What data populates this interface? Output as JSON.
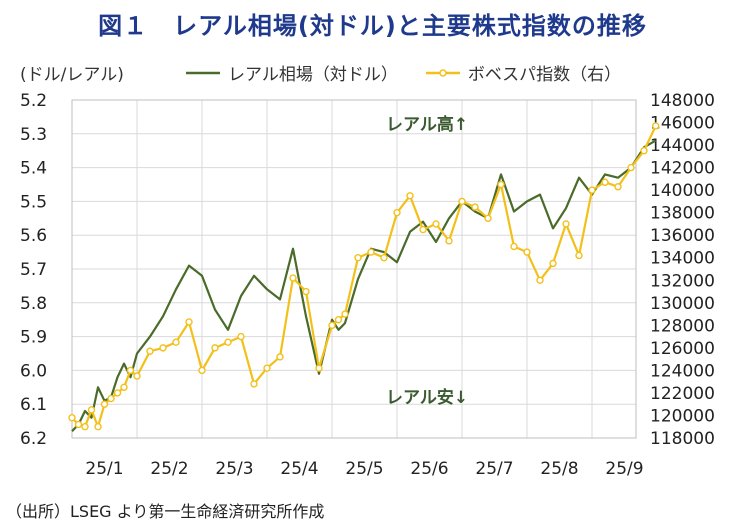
{
  "page": {
    "title": "図１　レアル相場(対ドル)と主要株式指数の推移",
    "source": "（出所）LSEG より第一生命経済研究所作成",
    "left_unit": "(ドル/レアル)"
  },
  "chart_data": {
    "type": "line",
    "title": "図１　レアル相場(対ドル)と主要株式指数の推移",
    "xlabel": "",
    "ylabel_left": "(ドル/レアル)",
    "ylabel_right": "",
    "categories": [
      "25/1",
      "25/2",
      "25/3",
      "25/4",
      "25/5",
      "25/6",
      "25/7",
      "25/8",
      "25/9"
    ],
    "y_left_range": [
      5.2,
      6.2
    ],
    "y_left_inverted": true,
    "y_left_ticks": [
      "5.2",
      "5.3",
      "5.4",
      "5.5",
      "5.6",
      "5.7",
      "5.8",
      "5.9",
      "6.0",
      "6.1",
      "6.2"
    ],
    "y_right_range": [
      118000,
      148000
    ],
    "y_right_ticks": [
      "148000",
      "146000",
      "144000",
      "142000",
      "140000",
      "138000",
      "136000",
      "134000",
      "132000",
      "130000",
      "128000",
      "126000",
      "124000",
      "122000",
      "120000",
      "118000"
    ],
    "annotations": {
      "top": "レアル高↑",
      "bottom": "レアル安↓"
    },
    "series": [
      {
        "name": "レアル相場（対ドル）",
        "axis": "left",
        "color": "#4a6b2a",
        "x": [
          0,
          0.1,
          0.2,
          0.3,
          0.4,
          0.5,
          0.6,
          0.7,
          0.8,
          0.9,
          1,
          1.2,
          1.4,
          1.6,
          1.8,
          2,
          2.2,
          2.4,
          2.6,
          2.8,
          3,
          3.2,
          3.4,
          3.6,
          3.8,
          4,
          4.1,
          4.2,
          4.4,
          4.6,
          4.8,
          5,
          5.2,
          5.4,
          5.6,
          5.8,
          6,
          6.2,
          6.4,
          6.6,
          6.8,
          7,
          7.2,
          7.4,
          7.6,
          7.8,
          8,
          8.2,
          8.4,
          8.6,
          8.8,
          8.98
        ],
        "values": [
          6.18,
          6.16,
          6.12,
          6.14,
          6.05,
          6.09,
          6.08,
          6.02,
          5.98,
          6.02,
          5.95,
          5.9,
          5.84,
          5.76,
          5.69,
          5.72,
          5.82,
          5.88,
          5.78,
          5.72,
          5.76,
          5.79,
          5.64,
          5.84,
          6.01,
          5.85,
          5.88,
          5.86,
          5.73,
          5.64,
          5.65,
          5.68,
          5.59,
          5.56,
          5.62,
          5.55,
          5.5,
          5.53,
          5.55,
          5.42,
          5.53,
          5.5,
          5.48,
          5.58,
          5.52,
          5.43,
          5.48,
          5.42,
          5.43,
          5.4,
          5.34,
          5.32
        ]
      },
      {
        "name": "ボベスパ指数（右）",
        "axis": "right",
        "color": "#f3c01a",
        "x": [
          0,
          0.1,
          0.2,
          0.3,
          0.4,
          0.5,
          0.6,
          0.7,
          0.8,
          0.9,
          1,
          1.2,
          1.4,
          1.6,
          1.8,
          2,
          2.2,
          2.4,
          2.6,
          2.8,
          3,
          3.2,
          3.4,
          3.6,
          3.8,
          4,
          4.1,
          4.2,
          4.4,
          4.6,
          4.8,
          5,
          5.2,
          5.4,
          5.6,
          5.8,
          6,
          6.2,
          6.4,
          6.6,
          6.8,
          7,
          7.2,
          7.4,
          7.6,
          7.8,
          8,
          8.2,
          8.4,
          8.6,
          8.8,
          8.98
        ],
        "values": [
          119800,
          119200,
          119000,
          120500,
          119000,
          121000,
          121500,
          122000,
          122500,
          124000,
          123500,
          125700,
          126000,
          126500,
          128300,
          124000,
          126000,
          126500,
          127000,
          122800,
          124200,
          125200,
          132200,
          131000,
          124200,
          128000,
          128500,
          129000,
          134000,
          134500,
          134000,
          138000,
          139500,
          136500,
          137000,
          135500,
          139000,
          138500,
          137500,
          140500,
          135000,
          134500,
          132000,
          133500,
          137000,
          134200,
          140000,
          140700,
          140300,
          142000,
          143500,
          145700
        ]
      }
    ]
  }
}
